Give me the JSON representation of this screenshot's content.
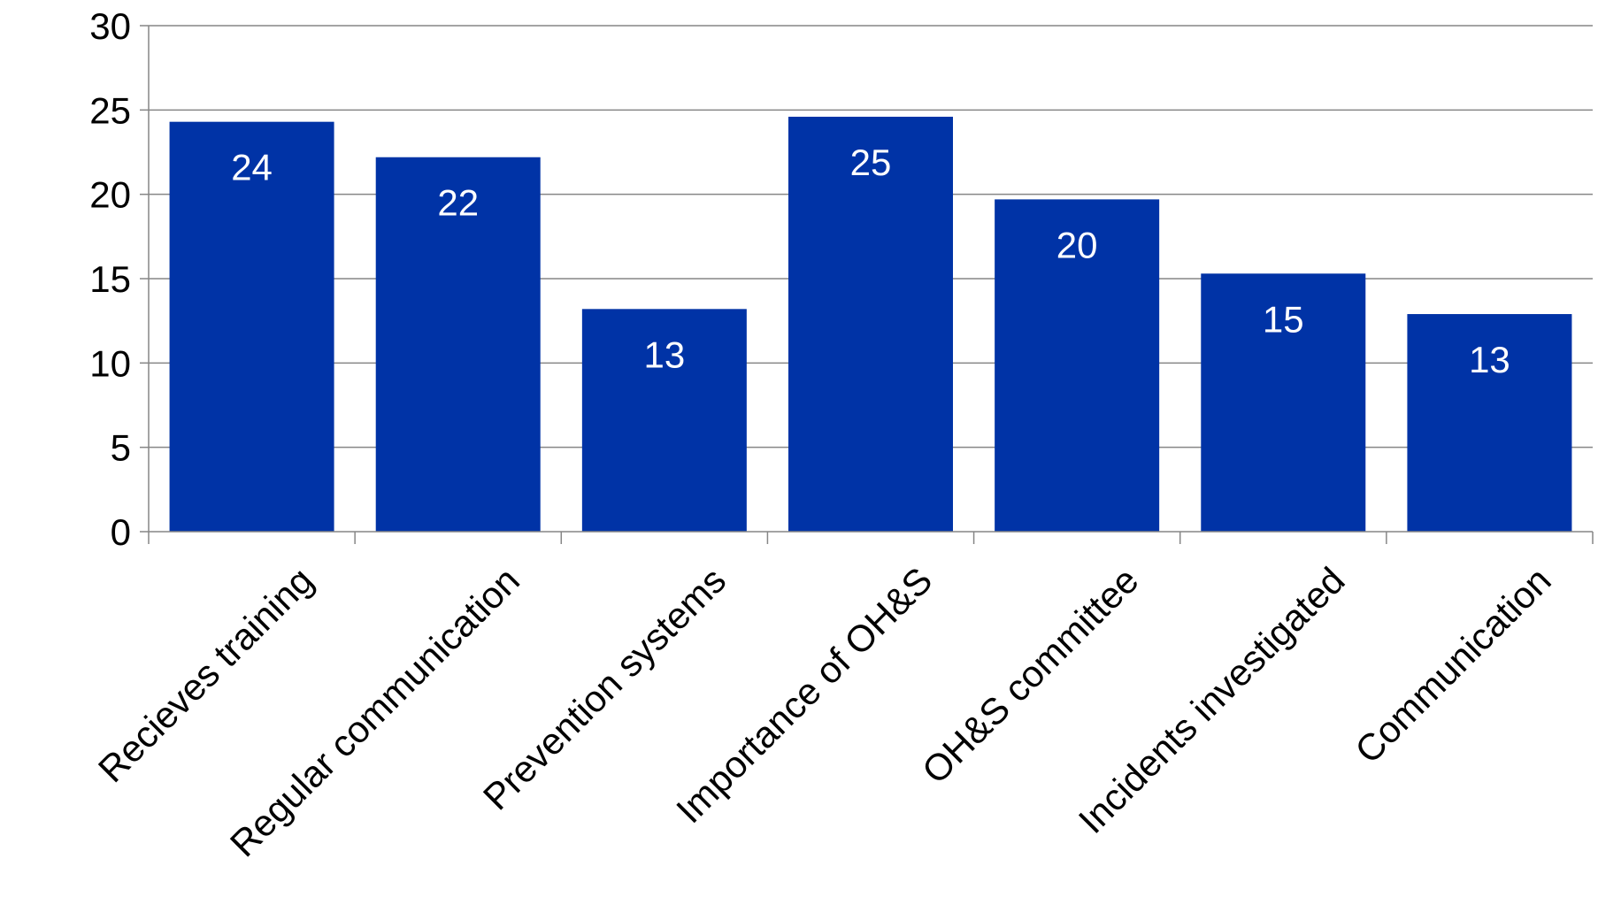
{
  "chart_data": {
    "type": "bar",
    "title": "",
    "xlabel": "",
    "ylabel": "",
    "categories": [
      "Recieves training",
      "Regular communication",
      "Prevention systems",
      "Importance of OH&S",
      "OH&S committee",
      "Incidents investigated",
      "Communication"
    ],
    "values": [
      24.3,
      22.2,
      13.2,
      24.6,
      19.7,
      15.3,
      12.9
    ],
    "data_labels": [
      "24",
      "22",
      "13",
      "25",
      "20",
      "15",
      "13"
    ],
    "ylim": [
      0,
      30
    ],
    "yticks": [
      "0",
      "5",
      "10",
      "15",
      "20",
      "25",
      "30"
    ],
    "grid": true,
    "legend": "none",
    "colors": {
      "bar": "#0033A6",
      "grid": "#868686",
      "axis": "#868686",
      "tick_text": "#000000",
      "data_label_text": "#FFFFFF"
    }
  }
}
